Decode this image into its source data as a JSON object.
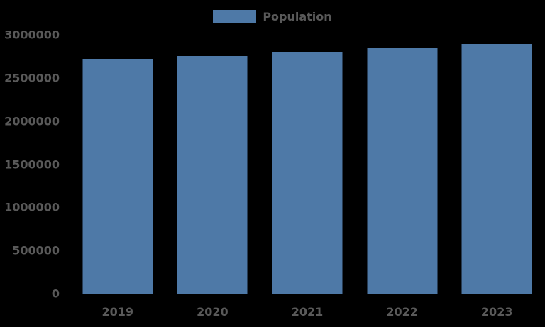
{
  "legend": {
    "label": "Population",
    "swatch_color": "#4e79a7"
  },
  "chart_data": {
    "type": "bar",
    "title": "",
    "xlabel": "",
    "ylabel": "",
    "categories": [
      "2019",
      "2020",
      "2021",
      "2022",
      "2023"
    ],
    "series": [
      {
        "name": "Population",
        "values": [
          2720000,
          2750000,
          2800000,
          2840000,
          2890000
        ]
      }
    ],
    "ylim": [
      0,
      3000000
    ],
    "yticks": [
      0,
      500000,
      1000000,
      1500000,
      2000000,
      2500000,
      3000000
    ],
    "ytick_labels": [
      "0",
      "500000",
      "1000000",
      "1500000",
      "2000000",
      "2500000",
      "3000000"
    ],
    "bar_color": "#4e79a7",
    "text_color": "#595959",
    "background_color": "#000000",
    "legend_position": "top",
    "grid": false
  }
}
